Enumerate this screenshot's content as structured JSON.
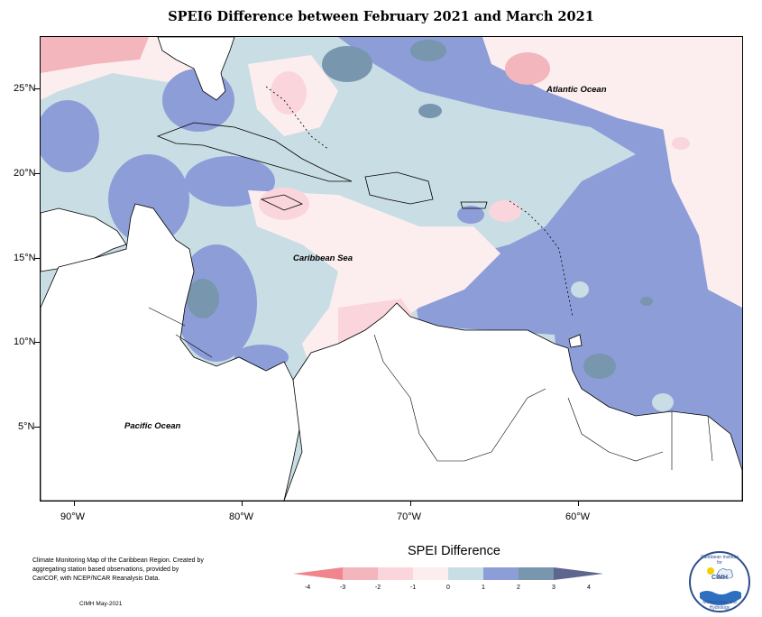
{
  "title": "SPEI6 Difference between February 2021 and March 2021",
  "map": {
    "lat_ticks": [
      "25°N",
      "20°N",
      "15°N",
      "10°N",
      "5°N"
    ],
    "lon_ticks": [
      "90°W",
      "80°W",
      "70°W",
      "60°W"
    ],
    "labels": {
      "atlantic": "Atlantic Ocean",
      "caribbean": "Caribbean Sea",
      "pacific": "Pacific Ocean"
    }
  },
  "legend": {
    "title": "SPEI Difference",
    "ticks": [
      "-4",
      "-3",
      "-2",
      "-1",
      "0",
      "1",
      "2",
      "3",
      "4"
    ],
    "colors": [
      "#f0858d",
      "#f2b6bc",
      "#fad6dc",
      "#fceeef",
      "#c9dde4",
      "#8d9dd8",
      "#7896ae",
      "#5d668e"
    ]
  },
  "footer": {
    "note": "Climate Monitoring Map of the Caribbean Region. Created by aggregating station based observations, provided by CariCOF, with NCEP/NCAR Reanalysis Data.",
    "credit": "CIMH May-2021"
  },
  "logo": {
    "text": "CIMH",
    "arc_top": "Caribbean Institute for",
    "arc_bottom": "Meteorology and Hydrology"
  }
}
